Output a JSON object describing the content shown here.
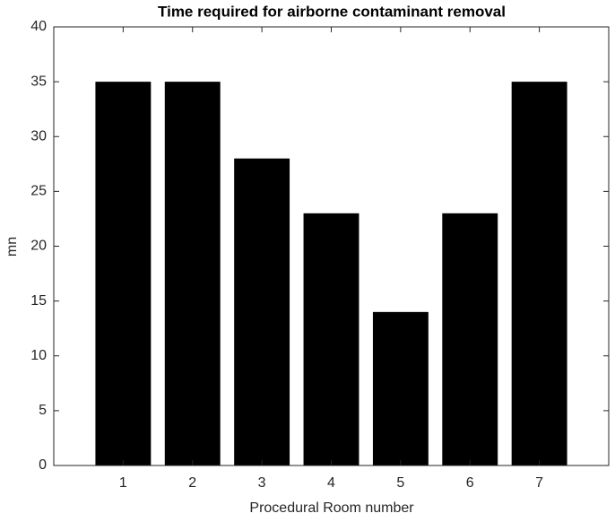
{
  "chart_data": {
    "type": "bar",
    "title": "Time required for airborne contaminant removal",
    "xlabel": "Procedural Room number",
    "ylabel": "mn",
    "x": [
      1,
      2,
      3,
      4,
      5,
      6,
      7
    ],
    "values": [
      35,
      35,
      28,
      23,
      14,
      23,
      35
    ],
    "color": "#000000",
    "xlim": [
      0,
      8
    ],
    "xticks": [
      1,
      2,
      3,
      4,
      5,
      6,
      7
    ],
    "ylim": [
      0,
      40
    ],
    "yticks": [
      0,
      5,
      10,
      15,
      20,
      25,
      30,
      35,
      40
    ],
    "grid": false
  }
}
